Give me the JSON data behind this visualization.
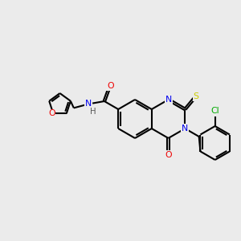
{
  "background_color": "#ebebeb",
  "bond_color": "#000000",
  "atom_colors": {
    "N": "#0000ee",
    "O": "#ee0000",
    "S": "#cccc00",
    "Cl": "#00aa00",
    "H": "#555555"
  },
  "figsize": [
    3.0,
    3.0
  ],
  "dpi": 100,
  "lw": 1.5,
  "fs": 7.8
}
